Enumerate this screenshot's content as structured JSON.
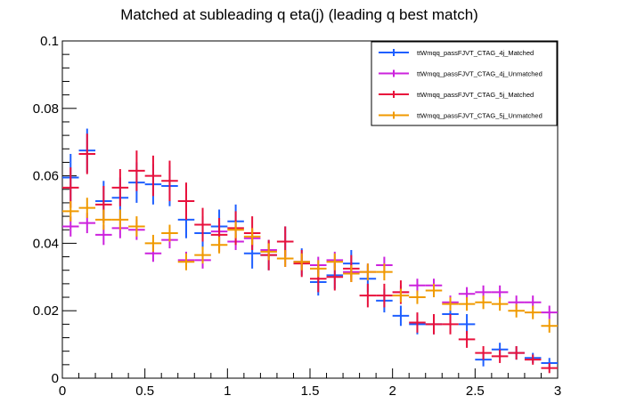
{
  "chart_data": {
    "type": "scatter",
    "title": "Matched at subleading q eta(j) (leading q  best match)",
    "xlabel": "",
    "ylabel": "",
    "xlim": [
      0,
      3
    ],
    "ylim": [
      0,
      0.1
    ],
    "x_ticks": [
      0,
      0.5,
      1,
      1.5,
      2,
      2.5,
      3
    ],
    "x_tick_labels": [
      "0",
      "0.5",
      "1",
      "1.5",
      "2",
      "2.5",
      "3"
    ],
    "y_ticks": [
      0,
      0.02,
      0.04,
      0.06,
      0.08,
      0.1
    ],
    "y_tick_labels": [
      "0",
      "0.02",
      "0.04",
      "0.06",
      "0.08",
      "0.1"
    ],
    "bin_width": 0.1,
    "x": [
      0.05,
      0.15,
      0.25,
      0.35,
      0.45,
      0.55,
      0.65,
      0.75,
      0.85,
      0.95,
      1.05,
      1.15,
      1.25,
      1.35,
      1.45,
      1.55,
      1.65,
      1.75,
      1.85,
      1.95,
      2.05,
      2.15,
      2.25,
      2.35,
      2.45,
      2.55,
      2.65,
      2.75,
      2.85,
      2.95
    ],
    "grid": false,
    "legend_position": "top-right",
    "series": [
      {
        "name": "ttWmqq_passFJVT_CTAG_4j_Matched",
        "color": "#1f5fff",
        "values": [
          0.0595,
          0.0675,
          0.0525,
          0.0535,
          0.058,
          0.0575,
          0.057,
          0.047,
          0.043,
          0.045,
          0.0465,
          0.037,
          0.0365,
          0.0405,
          0.0345,
          0.0285,
          0.0305,
          0.034,
          0.0295,
          0.023,
          0.0185,
          0.016,
          0.016,
          0.019,
          0.016,
          0.0055,
          0.0085,
          0.0075,
          0.006,
          0.0045
        ],
        "errors": [
          0.007,
          0.0065,
          0.006,
          0.006,
          0.006,
          0.006,
          0.006,
          0.0055,
          0.005,
          0.005,
          0.005,
          0.0045,
          0.0045,
          0.0045,
          0.004,
          0.004,
          0.004,
          0.004,
          0.004,
          0.0035,
          0.003,
          0.003,
          0.003,
          0.003,
          0.003,
          0.002,
          0.002,
          0.002,
          0.0015,
          0.0015
        ]
      },
      {
        "name": "ttWmqq_passFJVT_CTAG_4j_Unmatched",
        "color": "#cc22dd",
        "values": [
          0.045,
          0.046,
          0.0425,
          0.0445,
          0.044,
          0.037,
          0.041,
          0.035,
          0.035,
          0.0435,
          0.0405,
          0.0415,
          0.038,
          0.0355,
          0.0345,
          0.0335,
          0.035,
          0.0315,
          0.0315,
          0.0335,
          0.0255,
          0.0275,
          0.0275,
          0.0225,
          0.025,
          0.0255,
          0.0255,
          0.0225,
          0.0225,
          0.0195
        ],
        "errors": [
          0.003,
          0.003,
          0.003,
          0.003,
          0.003,
          0.0025,
          0.0025,
          0.0025,
          0.0025,
          0.0025,
          0.0025,
          0.0025,
          0.0025,
          0.0025,
          0.0025,
          0.0025,
          0.0025,
          0.0025,
          0.0025,
          0.0025,
          0.002,
          0.002,
          0.002,
          0.002,
          0.002,
          0.002,
          0.002,
          0.002,
          0.002,
          0.002
        ]
      },
      {
        "name": "ttWmqq_passFJVT_CTAG_5j_Matched",
        "color": "#e8113c",
        "values": [
          0.0565,
          0.0665,
          0.0515,
          0.0565,
          0.0615,
          0.06,
          0.0585,
          0.0525,
          0.0455,
          0.0425,
          0.0445,
          0.043,
          0.0365,
          0.0405,
          0.034,
          0.0295,
          0.03,
          0.0325,
          0.0245,
          0.0245,
          0.0255,
          0.0165,
          0.016,
          0.016,
          0.0115,
          0.0075,
          0.0065,
          0.0075,
          0.0055,
          0.003
        ],
        "errors": [
          0.006,
          0.006,
          0.0055,
          0.0055,
          0.006,
          0.006,
          0.006,
          0.0055,
          0.005,
          0.005,
          0.005,
          0.005,
          0.0045,
          0.0045,
          0.004,
          0.004,
          0.004,
          0.004,
          0.0035,
          0.0035,
          0.0035,
          0.003,
          0.003,
          0.003,
          0.0025,
          0.002,
          0.002,
          0.002,
          0.0015,
          0.0015
        ]
      },
      {
        "name": "ttWmqq_passFJVT_CTAG_5j_Unmatched",
        "color": "#f09a00",
        "values": [
          0.0495,
          0.0505,
          0.047,
          0.047,
          0.045,
          0.04,
          0.043,
          0.0345,
          0.0365,
          0.0395,
          0.044,
          0.042,
          0.0375,
          0.0355,
          0.0345,
          0.0325,
          0.0345,
          0.031,
          0.0315,
          0.0315,
          0.0245,
          0.024,
          0.026,
          0.022,
          0.022,
          0.0225,
          0.022,
          0.02,
          0.0195,
          0.0155
        ],
        "errors": [
          0.003,
          0.003,
          0.003,
          0.003,
          0.003,
          0.0025,
          0.0025,
          0.0025,
          0.0025,
          0.0025,
          0.0025,
          0.0025,
          0.0025,
          0.0025,
          0.0025,
          0.0025,
          0.0025,
          0.0025,
          0.0025,
          0.0025,
          0.002,
          0.002,
          0.002,
          0.002,
          0.002,
          0.002,
          0.002,
          0.002,
          0.002,
          0.002
        ]
      }
    ]
  }
}
